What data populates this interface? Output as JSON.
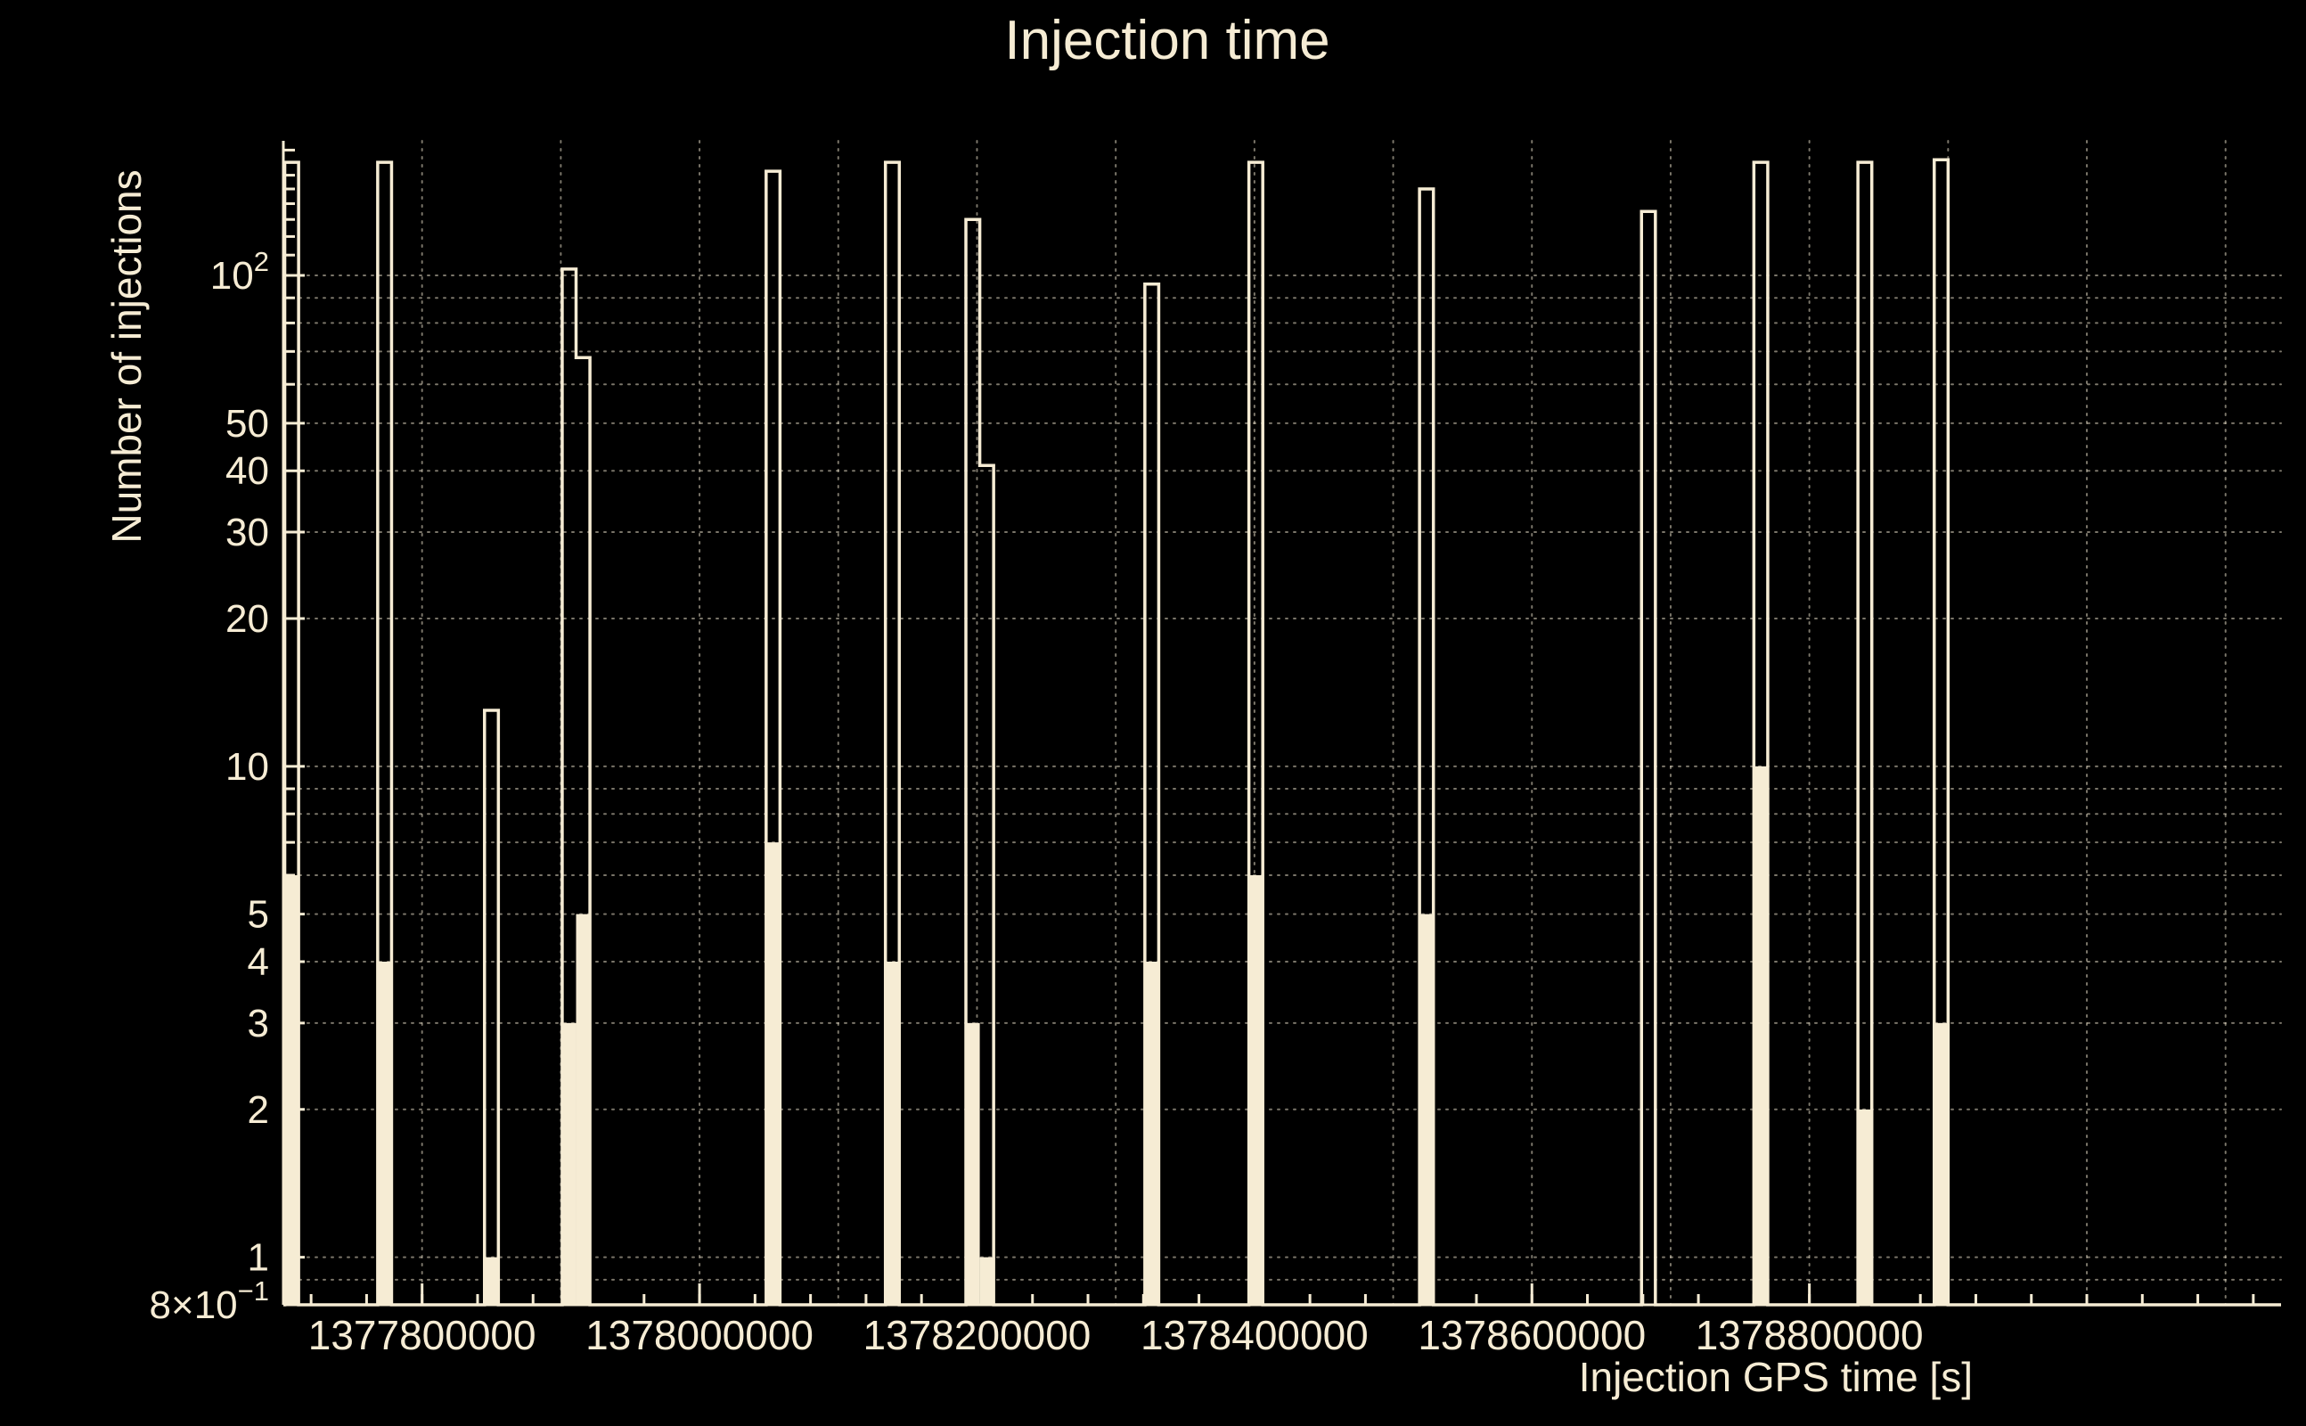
{
  "chart_data": {
    "type": "bar",
    "title": "Injection time",
    "xlabel": "Injection GPS time [s]",
    "ylabel": "Number of injections",
    "y_scale": "log",
    "grid": "dotted",
    "legend": "none",
    "xlim": [
      1377700000,
      1379140000
    ],
    "ylim": [
      0.8,
      188
    ],
    "x_major_ticks": [
      1377800000,
      1378000000,
      1378200000,
      1378400000,
      1378600000,
      1378800000
    ],
    "x_tick_labels": [
      "1377800000",
      "1378000000",
      "1378200000",
      "1378400000",
      "1378600000",
      "1378800000"
    ],
    "x_minor_start": 1377720000,
    "x_minor_end": 1379120000,
    "x_minor_step": 40000,
    "x_grid_start": 1377800000,
    "x_grid_end": 1379100000,
    "x_grid_step": 100000,
    "y_major_ticks": [
      {
        "value": 0.8,
        "mant": "8×10",
        "exp": "−1"
      },
      {
        "value": 1,
        "mant": "1",
        "exp": ""
      },
      {
        "value": 2,
        "mant": "2",
        "exp": ""
      },
      {
        "value": 3,
        "mant": "3",
        "exp": ""
      },
      {
        "value": 4,
        "mant": "4",
        "exp": ""
      },
      {
        "value": 5,
        "mant": "5",
        "exp": ""
      },
      {
        "value": 10,
        "mant": "10",
        "exp": ""
      },
      {
        "value": 20,
        "mant": "20",
        "exp": ""
      },
      {
        "value": 30,
        "mant": "30",
        "exp": ""
      },
      {
        "value": 40,
        "mant": "40",
        "exp": ""
      },
      {
        "value": 50,
        "mant": "50",
        "exp": ""
      },
      {
        "value": 100,
        "mant": "10",
        "exp": "2"
      }
    ],
    "y_minor_ticks": [
      0.9,
      6,
      7,
      8,
      9,
      60,
      70,
      80,
      90,
      110,
      120,
      130,
      140,
      150,
      160,
      170,
      180
    ],
    "y_grid_values": [
      0.9,
      1,
      2,
      3,
      4,
      5,
      6,
      7,
      8,
      9,
      10,
      20,
      30,
      40,
      50,
      60,
      70,
      80,
      90,
      100
    ],
    "bin_width": 10000,
    "series": [
      {
        "name": "outline",
        "style": "hollow-step",
        "bins": [
          {
            "x": 1377706000,
            "count": 170
          },
          {
            "x": 1377773000,
            "count": 170
          },
          {
            "x": 1377850000,
            "count": 13
          },
          {
            "x": 1377906000,
            "count": 103
          },
          {
            "x": 1377916000,
            "count": 68
          },
          {
            "x": 1378053000,
            "count": 163
          },
          {
            "x": 1378139000,
            "count": 170
          },
          {
            "x": 1378197000,
            "count": 130
          },
          {
            "x": 1378207000,
            "count": 41
          },
          {
            "x": 1378326000,
            "count": 96
          },
          {
            "x": 1378401000,
            "count": 170
          },
          {
            "x": 1378524000,
            "count": 150
          },
          {
            "x": 1378684000,
            "count": 135
          },
          {
            "x": 1378765000,
            "count": 170
          },
          {
            "x": 1378840000,
            "count": 170
          },
          {
            "x": 1378895000,
            "count": 172
          }
        ]
      },
      {
        "name": "filled",
        "style": "filled",
        "bins": [
          {
            "x": 1377706000,
            "count": 6
          },
          {
            "x": 1377773000,
            "count": 4
          },
          {
            "x": 1377850000,
            "count": 1
          },
          {
            "x": 1377906000,
            "count": 3
          },
          {
            "x": 1377916000,
            "count": 5
          },
          {
            "x": 1378053000,
            "count": 7
          },
          {
            "x": 1378139000,
            "count": 4
          },
          {
            "x": 1378197000,
            "count": 3
          },
          {
            "x": 1378207000,
            "count": 1
          },
          {
            "x": 1378326000,
            "count": 4
          },
          {
            "x": 1378401000,
            "count": 6
          },
          {
            "x": 1378524000,
            "count": 5
          },
          {
            "x": 1378765000,
            "count": 10
          },
          {
            "x": 1378840000,
            "count": 2
          },
          {
            "x": 1378895000,
            "count": 3
          }
        ]
      }
    ],
    "colors": {
      "background": "#000000",
      "foreground": "#f6ecd4",
      "grid": "#f6ecd4"
    }
  }
}
